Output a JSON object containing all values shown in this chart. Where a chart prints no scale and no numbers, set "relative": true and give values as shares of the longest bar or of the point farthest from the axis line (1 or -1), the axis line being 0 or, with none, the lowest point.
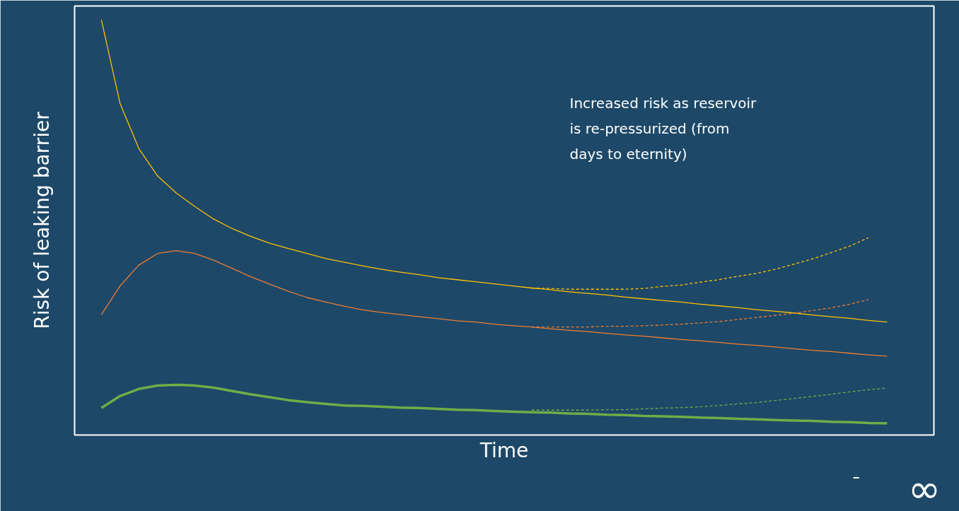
{
  "chart_data": {
    "type": "line",
    "relative": true,
    "xlabel": "Time",
    "ylabel": "Risk of leaking barrier",
    "annotations": [
      "Increased risk as reservoir is re-pressurized (from days to eternity)",
      "∞"
    ],
    "categories": [
      null,
      null,
      null,
      null,
      null,
      null,
      null,
      null,
      null,
      null,
      null,
      null,
      null,
      null,
      null,
      null,
      null,
      null,
      null,
      null,
      null,
      null,
      null,
      null,
      null,
      null,
      null,
      null,
      null,
      null,
      null,
      null,
      null,
      null,
      null,
      null,
      null,
      null,
      null,
      null,
      null,
      null,
      null
    ],
    "grid": false,
    "marker": "none",
    "series": [
      {
        "color": "#ffc000",
        "line_style": "solid",
        "values": [
          1,
          0.798,
          0.69,
          0.624,
          0.583,
          0.55,
          0.52,
          0.497,
          0.478,
          0.462,
          0.449,
          0.437,
          0.425,
          0.416,
          0.407,
          0.399,
          0.392,
          0.386,
          0.379,
          0.374,
          0.369,
          0.364,
          0.359,
          0.354,
          0.35,
          0.345,
          0.341,
          0.337,
          0.332,
          0.328,
          0.324,
          0.32,
          0.315,
          0.311,
          0.307,
          0.302,
          0.298,
          0.294,
          0.289,
          0.285,
          0.281,
          0.276,
          0.272
        ]
      },
      {
        "color": "#ffc000",
        "line_style": "dashed",
        "values": [
          null,
          null,
          null,
          null,
          null,
          null,
          null,
          null,
          null,
          null,
          null,
          null,
          null,
          null,
          null,
          null,
          null,
          null,
          null,
          null,
          null,
          null,
          null,
          0.354,
          0.353,
          0.351,
          0.351,
          0.351,
          0.351,
          0.353,
          0.358,
          0.361,
          0.368,
          0.374,
          0.382,
          0.389,
          0.399,
          0.411,
          0.424,
          0.439,
          0.455,
          0.475,
          null
        ]
      },
      {
        "color": "#ed7d31",
        "line_style": "solid",
        "values": [
          0.29,
          0.359,
          0.409,
          0.437,
          0.444,
          0.437,
          0.421,
          0.401,
          0.381,
          0.363,
          0.346,
          0.331,
          0.32,
          0.31,
          0.301,
          0.295,
          0.29,
          0.285,
          0.28,
          0.275,
          0.272,
          0.267,
          0.263,
          0.26,
          0.256,
          0.252,
          0.249,
          0.245,
          0.241,
          0.238,
          0.234,
          0.23,
          0.227,
          0.223,
          0.219,
          0.216,
          0.212,
          0.208,
          0.204,
          0.201,
          0.197,
          0.193,
          0.19
        ]
      },
      {
        "color": "#ed7d31",
        "line_style": "dashed",
        "values": [
          null,
          null,
          null,
          null,
          null,
          null,
          null,
          null,
          null,
          null,
          null,
          null,
          null,
          null,
          null,
          null,
          null,
          null,
          null,
          null,
          null,
          null,
          null,
          0.26,
          0.26,
          0.26,
          0.26,
          0.262,
          0.262,
          0.263,
          0.265,
          0.267,
          0.27,
          0.273,
          0.278,
          0.283,
          0.288,
          0.293,
          0.3,
          0.306,
          0.315,
          0.326,
          null
        ]
      },
      {
        "color": "#70ad47",
        "line_style": "solid",
        "values": [
          0.065,
          0.094,
          0.111,
          0.119,
          0.121,
          0.119,
          0.114,
          0.106,
          0.098,
          0.091,
          0.084,
          0.079,
          0.075,
          0.071,
          0.07,
          0.068,
          0.066,
          0.065,
          0.063,
          0.061,
          0.06,
          0.058,
          0.056,
          0.055,
          0.054,
          0.052,
          0.051,
          0.049,
          0.048,
          0.046,
          0.045,
          0.044,
          0.042,
          0.041,
          0.039,
          0.038,
          0.036,
          0.035,
          0.034,
          0.032,
          0.031,
          0.029,
          0.028
        ]
      },
      {
        "color": "#70ad47",
        "line_style": "dashed",
        "values": [
          null,
          null,
          null,
          null,
          null,
          null,
          null,
          null,
          null,
          null,
          null,
          null,
          null,
          null,
          null,
          null,
          null,
          null,
          null,
          null,
          null,
          null,
          null,
          0.06,
          0.06,
          0.06,
          0.06,
          0.061,
          0.061,
          0.063,
          0.065,
          0.066,
          0.068,
          0.071,
          0.075,
          0.078,
          0.083,
          0.088,
          0.093,
          0.098,
          0.104,
          0.109,
          0.113
        ]
      }
    ]
  }
}
